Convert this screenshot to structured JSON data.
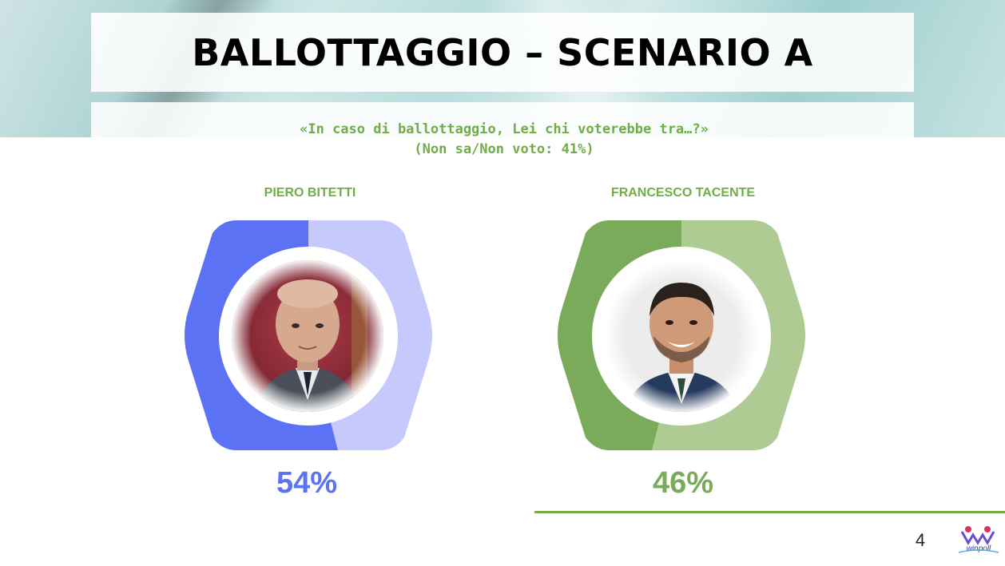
{
  "slide": {
    "title": "BALLOTTAGGIO – SCENARIO A",
    "question": "«In caso di ballottaggio, Lei chi voterebbe tra…?»",
    "note": "(Non sa/Non voto: 41%)",
    "page_number": "4",
    "logo_text": "winpoll"
  },
  "candidates": [
    {
      "name": "PIERO BITETTI",
      "percent_label": "54%",
      "color": "#5b72f5",
      "light_color": "#c6c9fb"
    },
    {
      "name": "FRANCESCO TACENTE",
      "percent_label": "46%",
      "color": "#7aab5a",
      "light_color": "#aecb93"
    }
  ],
  "chart_data": {
    "type": "pie",
    "title": "BALLOTTAGGIO – SCENARIO A",
    "categories": [
      "PIERO BITETTI",
      "FRANCESCO TACENTE"
    ],
    "values": [
      54,
      46
    ],
    "unit": "%",
    "annotations": [
      "(Non sa/Non voto: 41%)"
    ]
  },
  "colors": {
    "accent_green": "#70ad47",
    "bitetti_blue": "#5b72f5",
    "tacente_green": "#7aab5a"
  }
}
